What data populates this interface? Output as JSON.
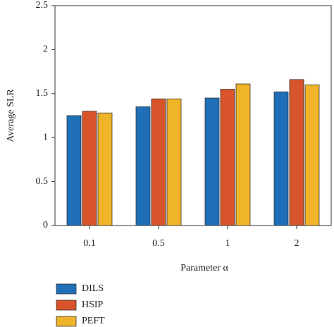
{
  "chart_data": {
    "type": "bar",
    "ylabel": "Average SLR",
    "xlabel": "Parameter α",
    "categories": [
      "0.1",
      "0.5",
      "1",
      "2"
    ],
    "series": [
      {
        "name": "DILS",
        "color": "#1f6fb8",
        "values": [
          1.25,
          1.35,
          1.45,
          1.52
        ]
      },
      {
        "name": "HSIP",
        "color": "#d9542a",
        "values": [
          1.3,
          1.44,
          1.55,
          1.66
        ]
      },
      {
        "name": "PEFT",
        "color": "#f0b429",
        "values": [
          1.28,
          1.44,
          1.61,
          1.6
        ]
      }
    ],
    "ylim": [
      0,
      2.5
    ],
    "yticks": [
      0,
      0.5,
      1,
      1.5,
      2,
      2.5
    ],
    "legend": "bottom-left",
    "grid": false
  }
}
